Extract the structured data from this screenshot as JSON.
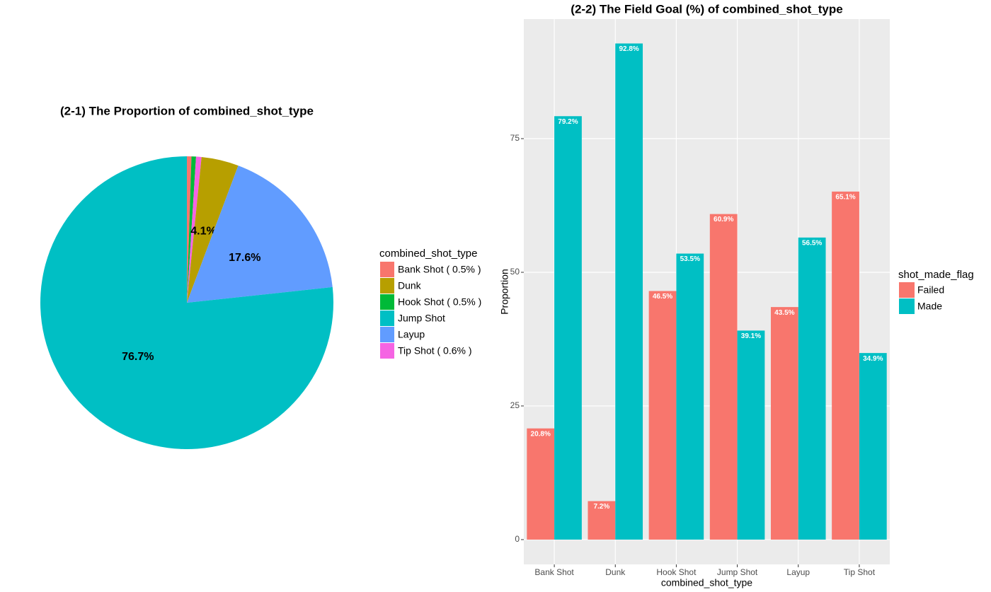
{
  "chart_data": [
    {
      "type": "pie",
      "title": "(2-1) The Proportion of combined_shot_type",
      "legend_title": "combined_shot_type",
      "categories": [
        "Bank Shot ( 0.5% )",
        "Dunk",
        "Hook Shot ( 0.5% )",
        "Jump Shot",
        "Layup",
        "Tip Shot ( 0.6% )"
      ],
      "values": [
        0.5,
        4.1,
        0.5,
        76.7,
        17.6,
        0.6
      ],
      "value_labels": [
        null,
        "4.1%",
        null,
        "76.7%",
        "17.6%",
        null
      ],
      "colors": [
        "#F8766D",
        "#B79F00",
        "#00BA38",
        "#00BFC4",
        "#619CFF",
        "#F564E3"
      ]
    },
    {
      "type": "bar",
      "title": "(2-2) The Field Goal (%) of combined_shot_type",
      "x_label": "combined_shot_type",
      "y_label": "Proportion",
      "legend_title": "shot_made_flag",
      "categories": [
        "Bank Shot",
        "Dunk",
        "Hook Shot",
        "Jump Shot",
        "Layup",
        "Tip Shot"
      ],
      "series": [
        {
          "name": "Failed",
          "color": "#F8766D",
          "values": [
            20.8,
            7.2,
            46.5,
            60.9,
            43.5,
            65.1
          ],
          "value_labels": [
            "20.8%",
            "7.2%",
            "46.5%",
            "60.9%",
            "43.5%",
            "65.1%"
          ]
        },
        {
          "name": "Made",
          "color": "#00BFC4",
          "values": [
            79.2,
            92.8,
            53.5,
            39.1,
            56.5,
            34.9
          ],
          "value_labels": [
            "79.2%",
            "92.8%",
            "53.5%",
            "39.1%",
            "56.5%",
            "34.9%"
          ]
        }
      ],
      "ylim": [
        -4.64,
        97.36
      ],
      "yticks": [
        0,
        25,
        50,
        75
      ],
      "grid": true
    }
  ]
}
